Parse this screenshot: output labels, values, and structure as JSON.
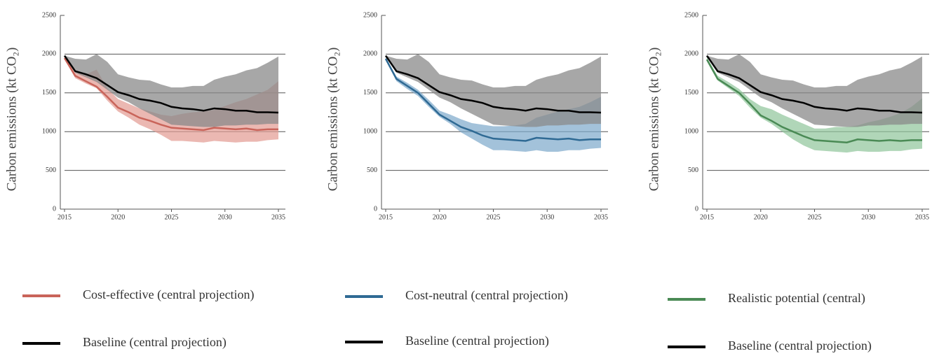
{
  "chart_data": [
    {
      "type": "line",
      "y_label": "Carbon emissions (kt CO₂)",
      "x": [
        2015,
        2016,
        2017,
        2018,
        2019,
        2020,
        2021,
        2022,
        2023,
        2024,
        2025,
        2026,
        2027,
        2028,
        2029,
        2030,
        2031,
        2032,
        2033,
        2034,
        2035
      ],
      "xlim": [
        2015,
        2035
      ],
      "ylim": [
        0,
        2500
      ],
      "xticks": [
        2015,
        2020,
        2025,
        2030,
        2035
      ],
      "yticks": [
        0,
        500,
        1000,
        1500,
        2000,
        2500
      ],
      "grid": true,
      "series": [
        {
          "name": "Cost-effective (central projection)",
          "color": "#c9645a",
          "band_color": "#e39a91",
          "values": [
            1950,
            1720,
            1650,
            1580,
            1450,
            1310,
            1250,
            1180,
            1140,
            1090,
            1050,
            1040,
            1030,
            1020,
            1050,
            1040,
            1030,
            1040,
            1020,
            1030,
            1030
          ],
          "band_upper": [
            1960,
            1760,
            1740,
            1800,
            1560,
            1420,
            1360,
            1300,
            1260,
            1220,
            1200,
            1230,
            1250,
            1260,
            1280,
            1330,
            1380,
            1420,
            1480,
            1540,
            1650
          ],
          "band_lower": [
            1940,
            1690,
            1620,
            1560,
            1400,
            1260,
            1180,
            1090,
            1030,
            960,
            880,
            880,
            870,
            860,
            880,
            870,
            860,
            870,
            870,
            890,
            900
          ]
        },
        {
          "name": "Baseline (central projection)",
          "color": "#000000",
          "band_color": "#8a8a8a",
          "values": [
            1980,
            1780,
            1740,
            1690,
            1600,
            1510,
            1470,
            1420,
            1400,
            1370,
            1320,
            1300,
            1290,
            1270,
            1300,
            1290,
            1270,
            1270,
            1250,
            1250,
            1245
          ],
          "band_upper": [
            1980,
            1940,
            1930,
            2000,
            1900,
            1740,
            1700,
            1670,
            1660,
            1610,
            1570,
            1570,
            1590,
            1590,
            1670,
            1710,
            1740,
            1790,
            1820,
            1890,
            1970
          ],
          "band_lower": [
            1980,
            1760,
            1700,
            1640,
            1540,
            1440,
            1380,
            1300,
            1230,
            1160,
            1090,
            1080,
            1070,
            1060,
            1060,
            1080,
            1080,
            1090,
            1090,
            1100,
            1100
          ]
        }
      ]
    },
    {
      "type": "line",
      "y_label": "Carbon emissions (kt CO₂)",
      "x": [
        2015,
        2016,
        2017,
        2018,
        2019,
        2020,
        2021,
        2022,
        2023,
        2024,
        2025,
        2026,
        2027,
        2028,
        2029,
        2030,
        2031,
        2032,
        2033,
        2034,
        2035
      ],
      "xlim": [
        2015,
        2035
      ],
      "ylim": [
        0,
        2500
      ],
      "xticks": [
        2015,
        2020,
        2025,
        2030,
        2035
      ],
      "yticks": [
        0,
        500,
        1000,
        1500,
        2000,
        2500
      ],
      "grid": true,
      "series": [
        {
          "name": "Cost-neutral (central projection)",
          "color": "#2f6a94",
          "band_color": "#7ca8ca",
          "values": [
            1940,
            1680,
            1590,
            1500,
            1360,
            1220,
            1140,
            1060,
            1010,
            950,
            910,
            900,
            890,
            880,
            920,
            910,
            900,
            910,
            890,
            900,
            900
          ],
          "band_upper": [
            1960,
            1710,
            1630,
            1540,
            1410,
            1270,
            1220,
            1160,
            1110,
            1090,
            1070,
            1070,
            1080,
            1100,
            1180,
            1220,
            1260,
            1290,
            1320,
            1380,
            1450
          ],
          "band_lower": [
            1930,
            1650,
            1550,
            1460,
            1320,
            1190,
            1100,
            990,
            910,
            830,
            760,
            760,
            750,
            740,
            760,
            740,
            740,
            760,
            760,
            780,
            790
          ]
        },
        {
          "name": "Baseline (central projection)",
          "color": "#000000",
          "band_color": "#8a8a8a",
          "values": [
            1980,
            1780,
            1740,
            1690,
            1600,
            1510,
            1470,
            1420,
            1400,
            1370,
            1320,
            1300,
            1290,
            1270,
            1300,
            1290,
            1270,
            1270,
            1250,
            1250,
            1245
          ],
          "band_upper": [
            1980,
            1940,
            1930,
            2000,
            1900,
            1740,
            1700,
            1670,
            1660,
            1610,
            1570,
            1570,
            1590,
            1590,
            1670,
            1710,
            1740,
            1790,
            1820,
            1890,
            1970
          ],
          "band_lower": [
            1980,
            1760,
            1700,
            1640,
            1540,
            1440,
            1380,
            1300,
            1230,
            1160,
            1090,
            1080,
            1070,
            1060,
            1060,
            1080,
            1080,
            1090,
            1090,
            1100,
            1100
          ]
        }
      ]
    },
    {
      "type": "line",
      "y_label": "Carbon emissions (kt CO₂)",
      "x": [
        2015,
        2016,
        2017,
        2018,
        2019,
        2020,
        2021,
        2022,
        2023,
        2024,
        2025,
        2026,
        2027,
        2028,
        2029,
        2030,
        2031,
        2032,
        2033,
        2034,
        2035
      ],
      "xlim": [
        2015,
        2035
      ],
      "ylim": [
        0,
        2500
      ],
      "xticks": [
        2015,
        2020,
        2025,
        2030,
        2035
      ],
      "yticks": [
        0,
        500,
        1000,
        1500,
        2000,
        2500
      ],
      "grid": true,
      "series": [
        {
          "name": "Realistic potential (central)",
          "color": "#4a8a55",
          "band_color": "#8fc49a",
          "values": [
            1930,
            1680,
            1590,
            1500,
            1360,
            1210,
            1140,
            1060,
            1000,
            940,
            890,
            880,
            870,
            860,
            900,
            890,
            880,
            890,
            880,
            890,
            890
          ],
          "band_upper": [
            1960,
            1720,
            1640,
            1550,
            1420,
            1330,
            1290,
            1220,
            1160,
            1100,
            1040,
            1040,
            1060,
            1060,
            1080,
            1120,
            1150,
            1190,
            1240,
            1320,
            1430
          ],
          "band_lower": [
            1930,
            1660,
            1560,
            1460,
            1310,
            1180,
            1100,
            1000,
            900,
            820,
            760,
            750,
            740,
            730,
            750,
            740,
            740,
            750,
            750,
            770,
            780
          ]
        },
        {
          "name": "Baseline (central projection)",
          "color": "#000000",
          "band_color": "#8a8a8a",
          "values": [
            1980,
            1780,
            1740,
            1690,
            1600,
            1510,
            1470,
            1420,
            1400,
            1370,
            1320,
            1300,
            1290,
            1270,
            1300,
            1290,
            1270,
            1270,
            1250,
            1250,
            1245
          ],
          "band_upper": [
            1980,
            1940,
            1930,
            2000,
            1900,
            1740,
            1700,
            1670,
            1660,
            1610,
            1570,
            1570,
            1590,
            1590,
            1670,
            1710,
            1740,
            1790,
            1820,
            1890,
            1970
          ],
          "band_lower": [
            1980,
            1760,
            1700,
            1640,
            1540,
            1440,
            1380,
            1300,
            1230,
            1160,
            1090,
            1080,
            1070,
            1060,
            1060,
            1080,
            1080,
            1090,
            1090,
            1100,
            1100
          ]
        }
      ]
    }
  ]
}
